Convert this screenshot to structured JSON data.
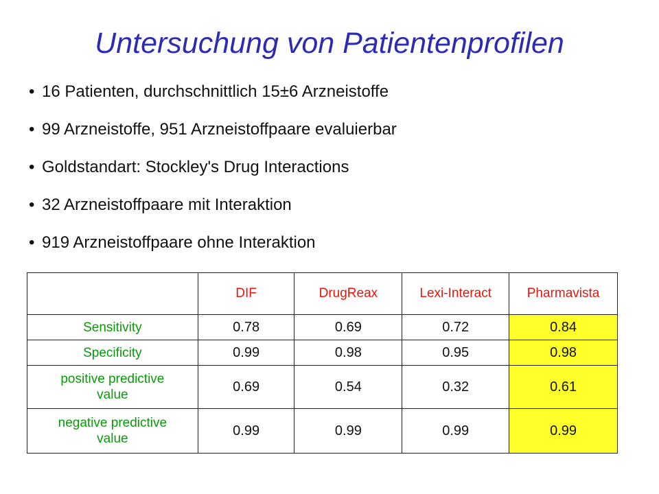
{
  "title": "Untersuchung von Patientenprofilen",
  "bullet_symbol": "•",
  "bullets": [
    "16 Patienten, durchschnittlich 15±6 Arzneistoffe",
    "99 Arzneistoffe, 951 Arzneistoffpaare evaluierbar",
    "Goldstandart: Stockley's Drug Interactions",
    "32 Arzneistoffpaare mit Interaktion",
    "919 Arzneistoffpaare ohne Interaktion"
  ],
  "table": {
    "columns": [
      "",
      "DIF",
      "DrugReax",
      "Lexi-Interact",
      "Pharmavista"
    ],
    "rows": [
      {
        "label": "Sensitivity",
        "values": [
          "0.78",
          "0.69",
          "0.72",
          "0.84"
        ]
      },
      {
        "label": "Specificity",
        "values": [
          "0.99",
          "0.98",
          "0.95",
          "0.98"
        ]
      },
      {
        "label": "positive predictive value",
        "values": [
          "0.69",
          "0.54",
          "0.32",
          "0.61"
        ]
      },
      {
        "label": "negative predictive value",
        "values": [
          "0.99",
          "0.99",
          "0.99",
          "0.99"
        ]
      }
    ],
    "highlight_column": "Pharmavista",
    "colors": {
      "header_text": "#e8140a",
      "row_label_text": "#0a9a0a",
      "highlight_fill": "#ffff29",
      "title_text": "#2b2bb3"
    }
  }
}
